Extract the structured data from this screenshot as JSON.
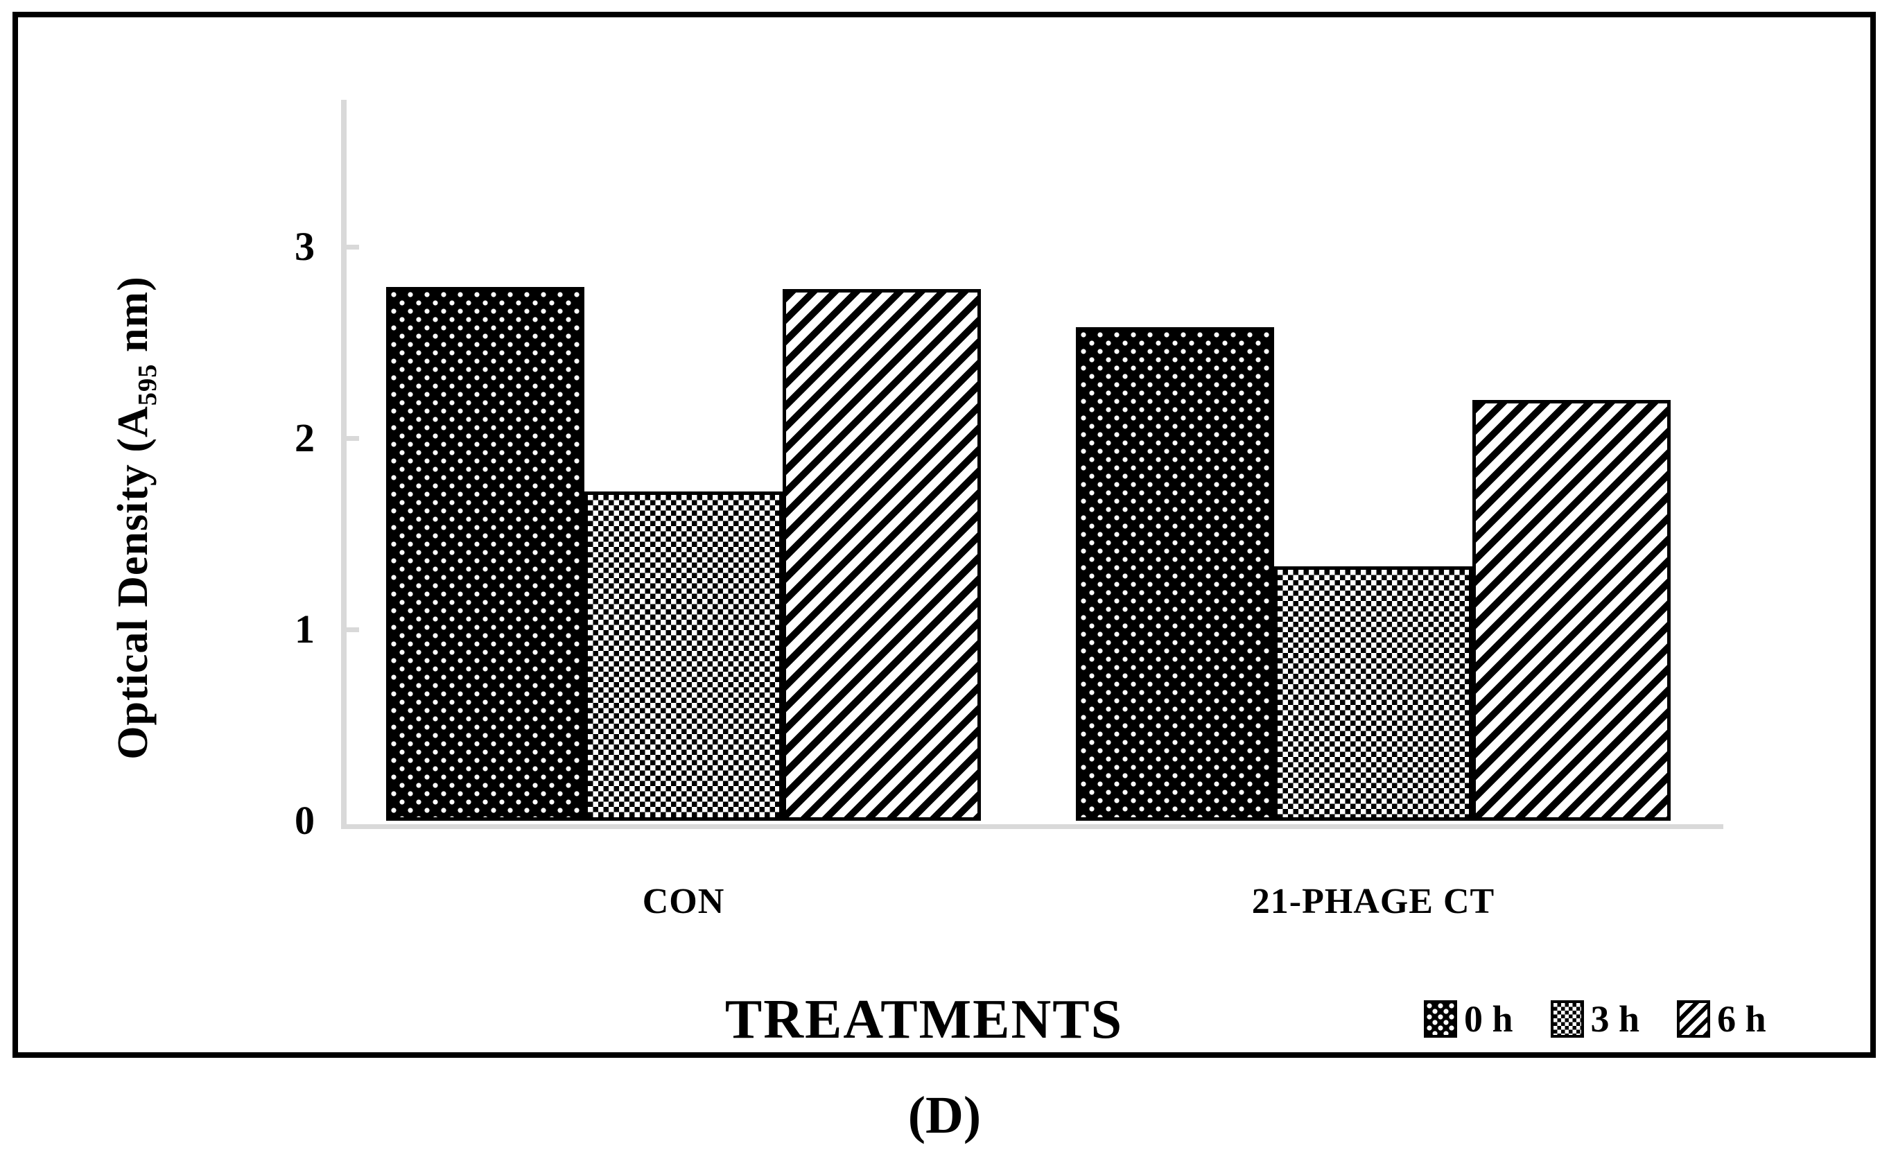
{
  "figure": {
    "caption": "(D)"
  },
  "colors": {
    "bar_fill": "#000000",
    "axis_line": "#d9d9d9",
    "text": "#000000",
    "background": "#ffffff"
  },
  "chart_data": {
    "type": "bar",
    "title": "",
    "xlabel": "TREATMENTS",
    "ylabel": {
      "text": "Optical Density (A595 nm)",
      "prefix": "Optical Density (A",
      "sub": "595",
      "suffix": " nm)"
    },
    "categories": [
      "CON",
      "21-PHAGE CT"
    ],
    "series": [
      {
        "name": "0 h",
        "pattern": "dots",
        "values": [
          2.79,
          2.58
        ]
      },
      {
        "name": "3 h",
        "pattern": "checker",
        "values": [
          1.72,
          1.33
        ]
      },
      {
        "name": "6 h",
        "pattern": "stripes",
        "values": [
          2.78,
          2.2
        ]
      }
    ],
    "yticks": [
      0,
      1,
      2,
      3
    ],
    "ylim": [
      0,
      3.8
    ],
    "grid": false,
    "legend_position": "bottom-right"
  }
}
